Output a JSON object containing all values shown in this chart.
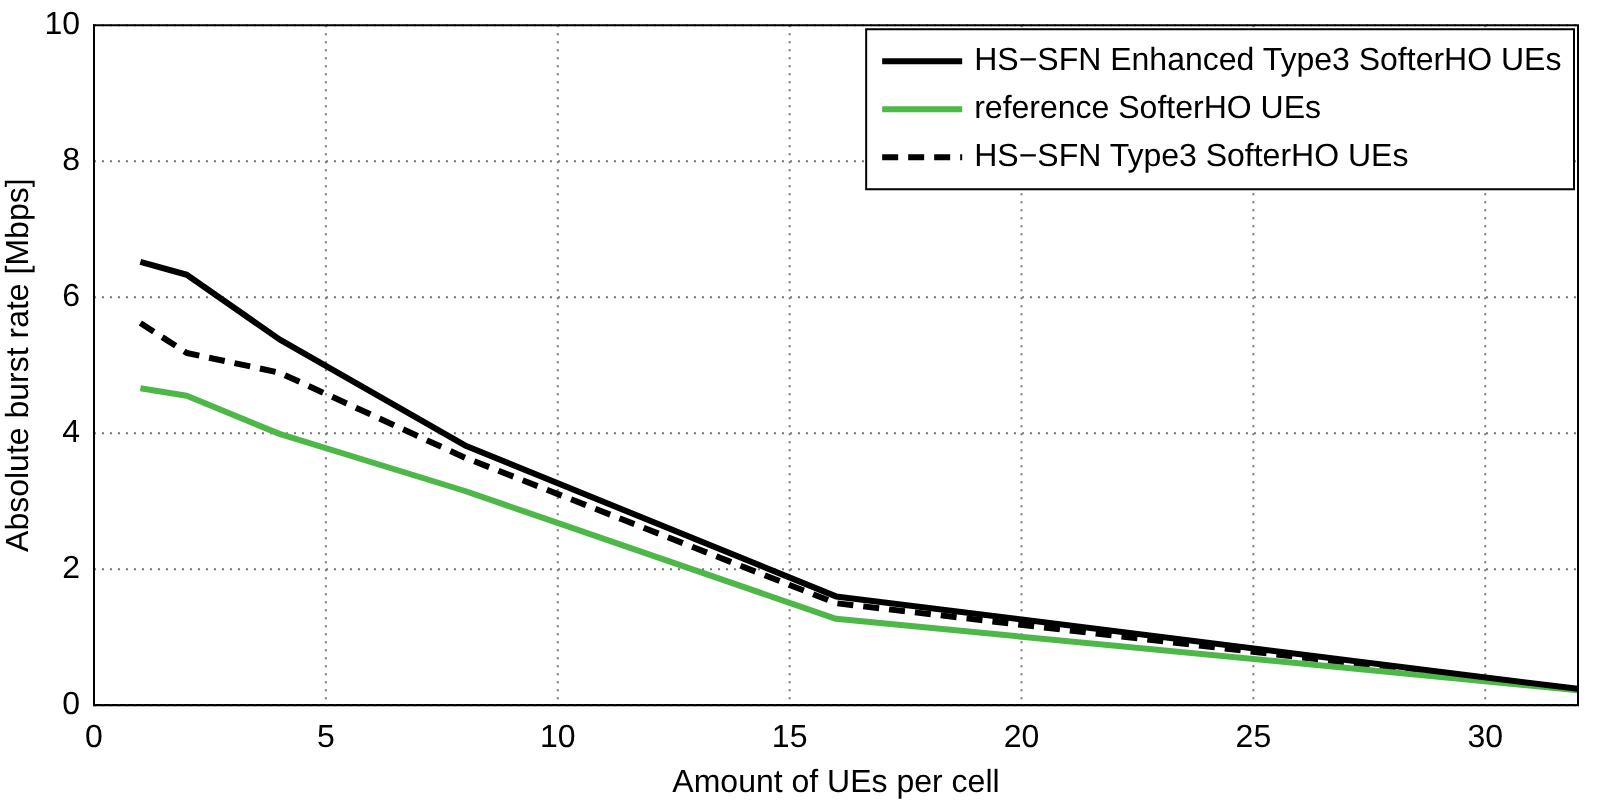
{
  "chart_data": {
    "type": "line",
    "xlabel": "Amount of UEs per cell",
    "ylabel": "Absolute burst rate [Mbps]",
    "x": [
      1,
      2,
      4,
      8,
      16,
      32
    ],
    "series": [
      {
        "name": "HS−SFN Enhanced Type3 SofterHO UEs",
        "color": "#000000",
        "values": [
          6.52,
          6.33,
          5.38,
          3.82,
          1.6,
          0.24
        ],
        "line_style": "solid"
      },
      {
        "name": "reference SofterHO UEs",
        "color": "#4db848",
        "values": [
          4.66,
          4.55,
          3.99,
          3.15,
          1.27,
          0.22
        ],
        "line_style": "solid"
      },
      {
        "name": "HS−SFN Type3 SofterHO UEs",
        "color": "#000000",
        "values": [
          5.62,
          5.18,
          4.89,
          3.64,
          1.5,
          0.23
        ],
        "line_style": "dashed"
      }
    ],
    "xlim": [
      0,
      32
    ],
    "xticks": [
      0,
      5,
      10,
      15,
      20,
      25,
      30
    ],
    "ylim": [
      0,
      10
    ],
    "yticks": [
      0,
      2,
      4,
      6,
      8,
      10
    ],
    "grid": true,
    "legend": "top right",
    "marker": "none"
  }
}
